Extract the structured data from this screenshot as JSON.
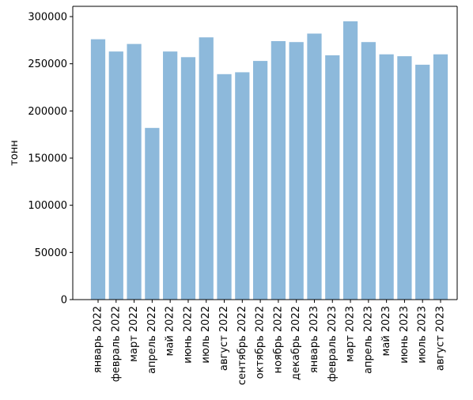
{
  "chart_data": {
    "type": "bar",
    "title": "",
    "xlabel": "",
    "ylabel": "тонн",
    "ylim": [
      0,
      300000
    ],
    "yticks": [
      0,
      50000,
      100000,
      150000,
      200000,
      250000,
      300000
    ],
    "ytick_labels": [
      "0",
      "50000",
      "100000",
      "150000",
      "200000",
      "250000",
      "300000"
    ],
    "grid": false,
    "bar_color": "#8db9db",
    "categories": [
      "январь 2022",
      "февраль 2022",
      "март 2022",
      "апрель 2022",
      "май 2022",
      "июнь 2022",
      "июль 2022",
      "август 2022",
      "сентябрь 2022",
      "октябрь 2022",
      "ноябрь 2022",
      "декабрь 2022",
      "январь 2023",
      "февраль 2023",
      "март 2023",
      "апрель 2023",
      "май 2023",
      "июнь 2023",
      "июль 2023",
      "август 2023"
    ],
    "values": [
      276000,
      263000,
      271000,
      182000,
      263000,
      257000,
      278000,
      239000,
      241000,
      253000,
      274000,
      273000,
      282000,
      259000,
      295000,
      273000,
      260000,
      258000,
      249000,
      260000
    ]
  }
}
